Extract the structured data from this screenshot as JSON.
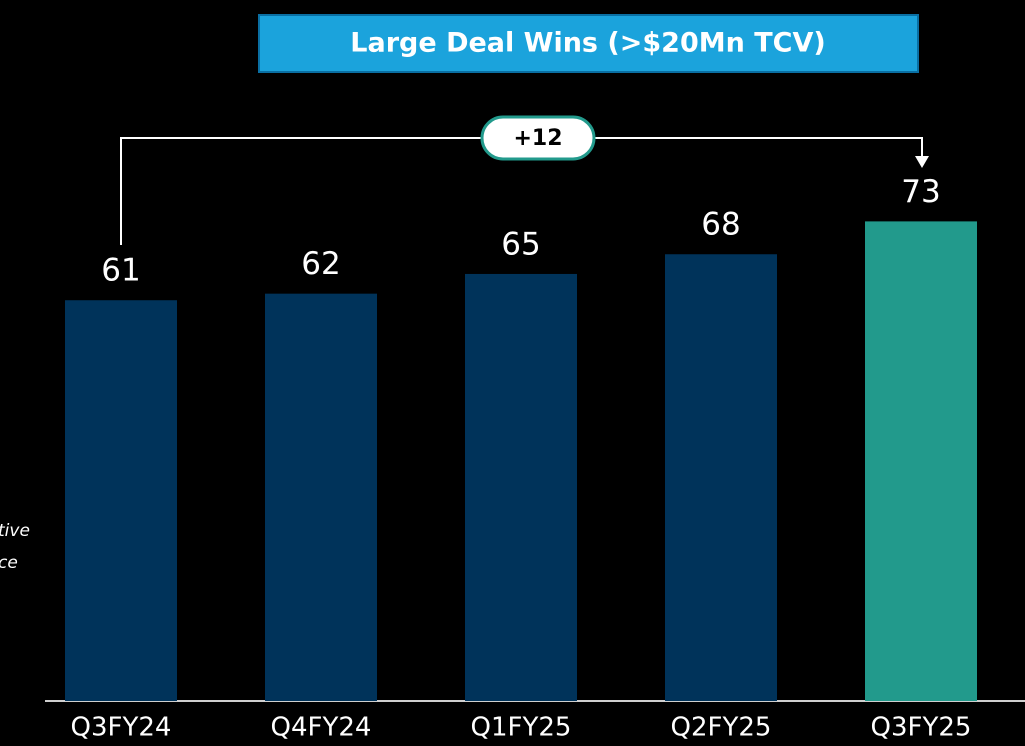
{
  "chart_data": {
    "type": "bar",
    "title": "Large Deal Wins (>$20Mn TCV)",
    "categories": [
      "Q3FY24",
      "Q4FY24",
      "Q1FY25",
      "Q2FY25",
      "Q3FY25"
    ],
    "values": [
      61,
      62,
      65,
      68,
      73
    ],
    "colors": [
      "#00335a",
      "#00335a",
      "#00335a",
      "#00335a",
      "#229a8c"
    ],
    "annotation": "+12",
    "side_note": [
      "tive",
      "ce"
    ]
  }
}
